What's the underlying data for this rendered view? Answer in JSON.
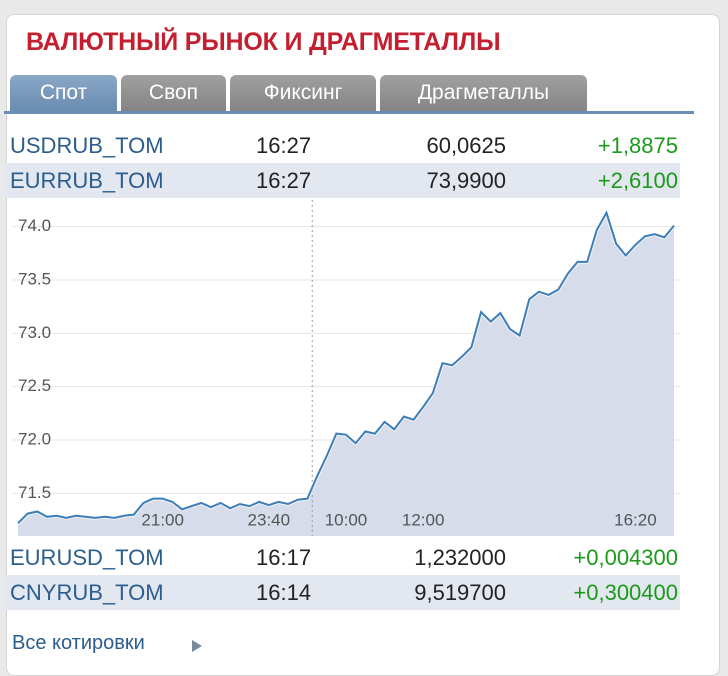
{
  "widget": {
    "title": "ВАЛЮТНЫЙ РЫНОК И ДРАГМЕТАЛЛЫ",
    "tabs": [
      "Спот",
      "Своп",
      "Фиксинг",
      "Драгметаллы"
    ],
    "rows_top": [
      [
        "USDRUB_TOM",
        "16:27",
        "60,0625",
        "+1,8875"
      ],
      [
        "EURRUB_TOM",
        "16:27",
        "73,9900",
        "+2,6100"
      ]
    ],
    "rows_bottom": [
      [
        "EURUSD_TOM",
        "16:17",
        "1,232000",
        "+0,004300"
      ],
      [
        "CNYRUB_TOM",
        "16:14",
        "9,519700",
        "+0,300400"
      ]
    ],
    "link": "Все котировки"
  },
  "chart_data": {
    "type": "line",
    "categories": [
      null,
      null,
      null,
      null,
      null,
      null,
      null,
      null,
      null,
      null,
      null,
      null,
      null,
      null,
      null,
      "21:00",
      null,
      null,
      null,
      null,
      null,
      null,
      null,
      null,
      null,
      null,
      "23:40",
      null,
      null,
      null,
      null,
      null,
      null,
      null,
      "10:00",
      null,
      null,
      null,
      null,
      null,
      null,
      null,
      "12:00",
      null,
      null,
      null,
      null,
      null,
      null,
      null,
      null,
      null,
      null,
      null,
      null,
      null,
      null,
      null,
      null,
      null,
      null,
      null,
      null,
      null,
      "16:20",
      null,
      null,
      null,
      null
    ],
    "values": [
      71.22,
      71.31,
      71.33,
      71.28,
      71.29,
      71.27,
      71.29,
      71.28,
      71.27,
      71.28,
      71.27,
      71.29,
      71.3,
      71.41,
      71.45,
      71.45,
      71.42,
      71.35,
      71.38,
      71.41,
      71.37,
      71.41,
      71.36,
      71.4,
      71.38,
      71.42,
      71.39,
      71.42,
      71.4,
      71.44,
      71.45,
      71.66,
      71.85,
      72.06,
      72.05,
      71.97,
      72.08,
      72.06,
      72.17,
      72.1,
      72.22,
      72.19,
      72.31,
      72.44,
      72.72,
      72.7,
      72.78,
      72.87,
      73.2,
      73.11,
      73.19,
      73.04,
      72.98,
      73.32,
      73.39,
      73.36,
      73.41,
      73.56,
      73.67,
      73.67,
      73.97,
      74.13,
      73.84,
      73.73,
      73.83,
      73.91,
      73.93,
      73.9,
      74.01
    ],
    "color": "#3d7db8",
    "fill": "#d6dce9",
    "ylim": [
      71.1,
      74.25
    ],
    "yticks": [
      71.5,
      {
        "value": 72,
        "label": "72.0"
      },
      72.5,
      {
        "value": 73,
        "label": "73.0"
      },
      73.5,
      {
        "value": 74,
        "label": "74.0"
      }
    ],
    "grid": true
  }
}
